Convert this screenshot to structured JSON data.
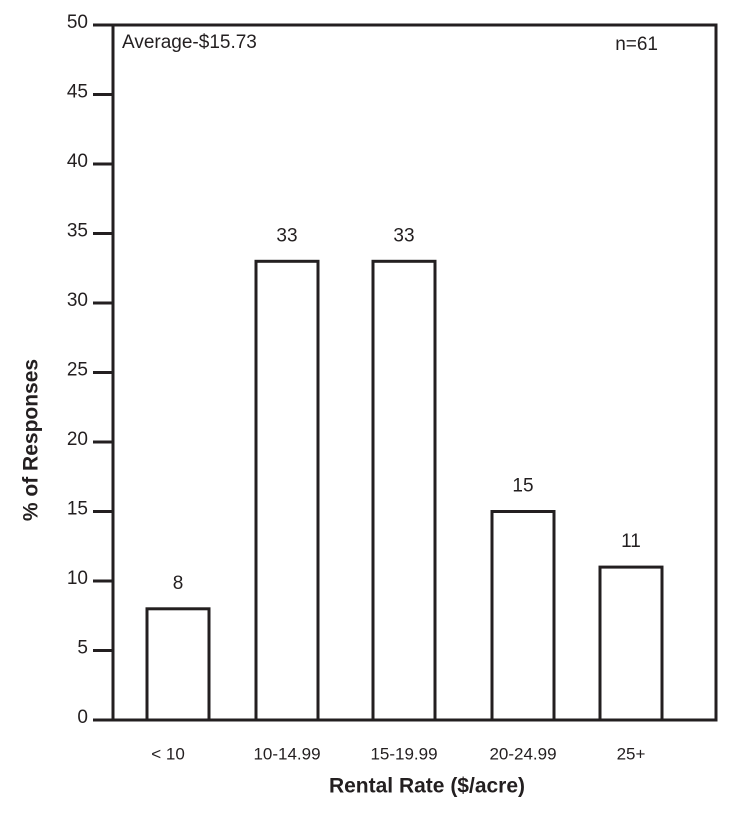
{
  "chart_data": {
    "type": "bar",
    "annotations": [
      "Average-$15.73",
      "n=61"
    ],
    "x_label": "Rental Rate ($/acre)",
    "y_label": "% of Responses",
    "categories": [
      "< 10",
      "10-14.99",
      "15-19.99",
      "20-24.99",
      "25+"
    ],
    "values": [
      8,
      33,
      33,
      15,
      11
    ],
    "color": "#ffffff",
    "ylim": [
      0,
      50
    ],
    "yticks": [
      0,
      5,
      10,
      15,
      20,
      25,
      30,
      35,
      40,
      45,
      50
    ],
    "grid": false
  }
}
